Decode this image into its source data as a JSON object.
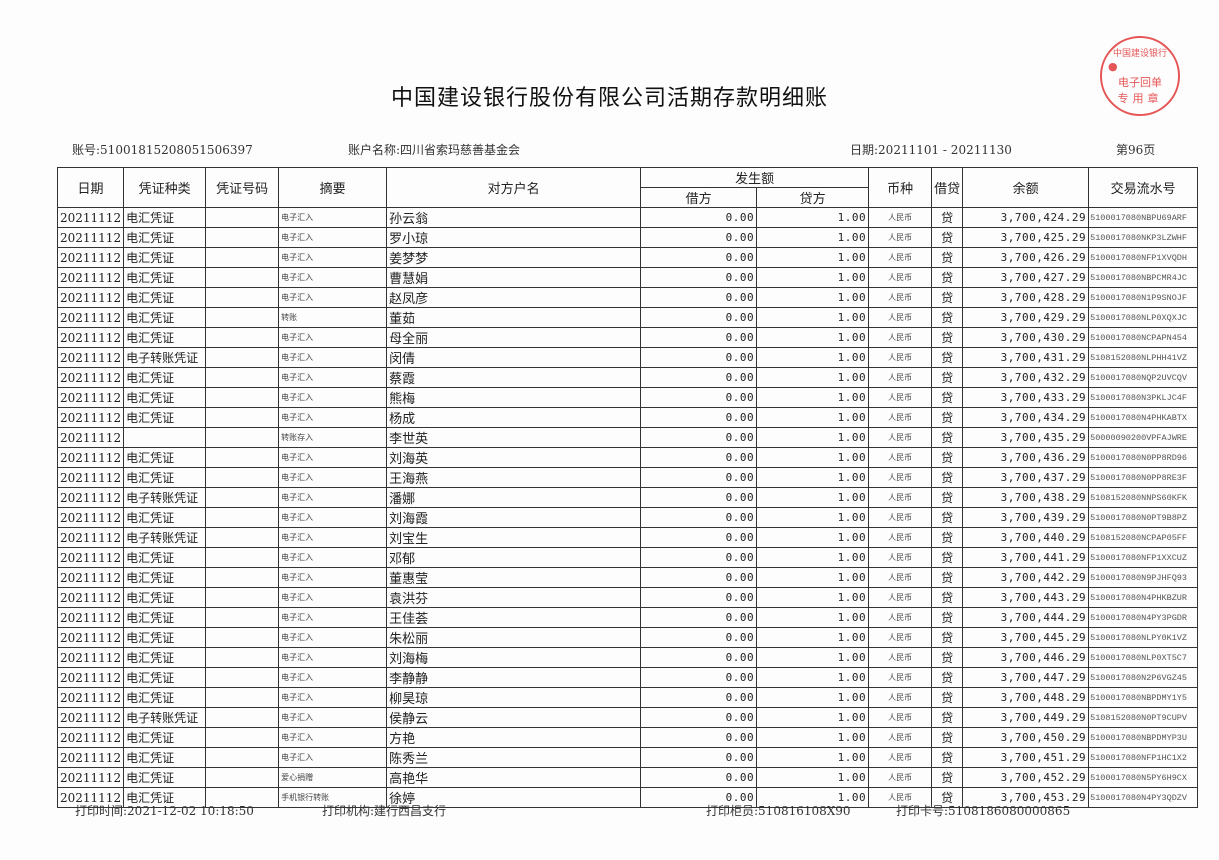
{
  "title": "中国建设银行股份有限公司活期存款明细账",
  "meta": {
    "account": "账号:51001815208051506397",
    "account_name": "账户名称:四川省索玛慈善基金会",
    "date": "日期:20211101 - 20211130",
    "page": "第96页"
  },
  "headers": {
    "date": "日期",
    "voucher_type": "凭证种类",
    "voucher_no": "凭证号码",
    "summary": "摘要",
    "counterparty": "对方户名",
    "amount": "发生额",
    "debit": "借方",
    "credit": "贷方",
    "currency": "币种",
    "dc": "借贷",
    "balance": "余额",
    "serial": "交易流水号"
  },
  "rows": [
    [
      "20211112",
      "电汇凭证",
      "",
      "电子汇入",
      "孙云翁",
      "0.00",
      "1.00",
      "人民币",
      "贷",
      "3,700,424.29",
      "5100017080NBPU69ARF"
    ],
    [
      "20211112",
      "电汇凭证",
      "",
      "电子汇入",
      "罗小琼",
      "0.00",
      "1.00",
      "人民币",
      "贷",
      "3,700,425.29",
      "5100017080NKP3LZWHF"
    ],
    [
      "20211112",
      "电汇凭证",
      "",
      "电子汇入",
      "姜梦梦",
      "0.00",
      "1.00",
      "人民币",
      "贷",
      "3,700,426.29",
      "5100017080NFP1XVQDH"
    ],
    [
      "20211112",
      "电汇凭证",
      "",
      "电子汇入",
      "曹慧娟",
      "0.00",
      "1.00",
      "人民币",
      "贷",
      "3,700,427.29",
      "5100017080NBPCMR4JC"
    ],
    [
      "20211112",
      "电汇凭证",
      "",
      "电子汇入",
      "赵凤彦",
      "0.00",
      "1.00",
      "人民币",
      "贷",
      "3,700,428.29",
      "5100017080N1P9SNOJF"
    ],
    [
      "20211112",
      "电汇凭证",
      "",
      "转账",
      "董茹",
      "0.00",
      "1.00",
      "人民币",
      "贷",
      "3,700,429.29",
      "5100017080NLP0XQXJC"
    ],
    [
      "20211112",
      "电汇凭证",
      "",
      "电子汇入",
      "母全丽",
      "0.00",
      "1.00",
      "人民币",
      "贷",
      "3,700,430.29",
      "5100017080NCPAPN454"
    ],
    [
      "20211112",
      "电子转账凭证",
      "",
      "电子汇入",
      "闵倩",
      "0.00",
      "1.00",
      "人民币",
      "贷",
      "3,700,431.29",
      "5108152080NLPHH41VZ"
    ],
    [
      "20211112",
      "电汇凭证",
      "",
      "电子汇入",
      "蔡霞",
      "0.00",
      "1.00",
      "人民币",
      "贷",
      "3,700,432.29",
      "5100017080NQP2UVCQV"
    ],
    [
      "20211112",
      "电汇凭证",
      "",
      "电子汇入",
      "熊梅",
      "0.00",
      "1.00",
      "人民币",
      "贷",
      "3,700,433.29",
      "5100017080N3PKLJC4F"
    ],
    [
      "20211112",
      "电汇凭证",
      "",
      "电子汇入",
      "杨成",
      "0.00",
      "1.00",
      "人民币",
      "贷",
      "3,700,434.29",
      "5100017080N4PHKABTX"
    ],
    [
      "20211112",
      "",
      "",
      "转账存入",
      "李世英",
      "0.00",
      "1.00",
      "人民币",
      "贷",
      "3,700,435.29",
      "50000090200VPFAJWRE"
    ],
    [
      "20211112",
      "电汇凭证",
      "",
      "电子汇入",
      "刘海英",
      "0.00",
      "1.00",
      "人民币",
      "贷",
      "3,700,436.29",
      "5100017080N0PP8RD96"
    ],
    [
      "20211112",
      "电汇凭证",
      "",
      "电子汇入",
      "王海燕",
      "0.00",
      "1.00",
      "人民币",
      "贷",
      "3,700,437.29",
      "5100017080N0PP8RE3F"
    ],
    [
      "20211112",
      "电子转账凭证",
      "",
      "电子汇入",
      "潘娜",
      "0.00",
      "1.00",
      "人民币",
      "贷",
      "3,700,438.29",
      "5108152080NNPS60KFK"
    ],
    [
      "20211112",
      "电汇凭证",
      "",
      "电子汇入",
      "刘海霞",
      "0.00",
      "1.00",
      "人民币",
      "贷",
      "3,700,439.29",
      "5100017080N0PT9B8PZ"
    ],
    [
      "20211112",
      "电子转账凭证",
      "",
      "电子汇入",
      "刘宝生",
      "0.00",
      "1.00",
      "人民币",
      "贷",
      "3,700,440.29",
      "5108152080NCPAP05FF"
    ],
    [
      "20211112",
      "电汇凭证",
      "",
      "电子汇入",
      "邓郁",
      "0.00",
      "1.00",
      "人民币",
      "贷",
      "3,700,441.29",
      "5100017080NFP1XXCUZ"
    ],
    [
      "20211112",
      "电汇凭证",
      "",
      "电子汇入",
      "董惠莹",
      "0.00",
      "1.00",
      "人民币",
      "贷",
      "3,700,442.29",
      "5100017080N9PJHFQ93"
    ],
    [
      "20211112",
      "电汇凭证",
      "",
      "电子汇入",
      "袁洪芬",
      "0.00",
      "1.00",
      "人民币",
      "贷",
      "3,700,443.29",
      "5100017080N4PHKBZUR"
    ],
    [
      "20211112",
      "电汇凭证",
      "",
      "电子汇入",
      "王佳荟",
      "0.00",
      "1.00",
      "人民币",
      "贷",
      "3,700,444.29",
      "5100017080N4PY3PGDR"
    ],
    [
      "20211112",
      "电汇凭证",
      "",
      "电子汇入",
      "朱松丽",
      "0.00",
      "1.00",
      "人民币",
      "贷",
      "3,700,445.29",
      "5100017080NLPY0K1VZ"
    ],
    [
      "20211112",
      "电汇凭证",
      "",
      "电子汇入",
      "刘海梅",
      "0.00",
      "1.00",
      "人民币",
      "贷",
      "3,700,446.29",
      "5100017080NLP0XT5C7"
    ],
    [
      "20211112",
      "电汇凭证",
      "",
      "电子汇入",
      "李静静",
      "0.00",
      "1.00",
      "人民币",
      "贷",
      "3,700,447.29",
      "5100017080N2P6VGZ45"
    ],
    [
      "20211112",
      "电汇凭证",
      "",
      "电子汇入",
      "柳昊琼",
      "0.00",
      "1.00",
      "人民币",
      "贷",
      "3,700,448.29",
      "5100017080NBPDMY1Y5"
    ],
    [
      "20211112",
      "电子转账凭证",
      "",
      "电子汇入",
      "侯静云",
      "0.00",
      "1.00",
      "人民币",
      "贷",
      "3,700,449.29",
      "5108152080N0PT9CUPV"
    ],
    [
      "20211112",
      "电汇凭证",
      "",
      "电子汇入",
      "方艳",
      "0.00",
      "1.00",
      "人民币",
      "贷",
      "3,700,450.29",
      "5100017080NBPDMYP3U"
    ],
    [
      "20211112",
      "电汇凭证",
      "",
      "电子汇入",
      "陈秀兰",
      "0.00",
      "1.00",
      "人民币",
      "贷",
      "3,700,451.29",
      "5100017080NFP1HC1X2"
    ],
    [
      "20211112",
      "电汇凭证",
      "",
      "爱心捐赠",
      "高艳华",
      "0.00",
      "1.00",
      "人民币",
      "贷",
      "3,700,452.29",
      "5100017080N5PY6H9CX"
    ],
    [
      "20211112",
      "电汇凭证",
      "",
      "手机银行转账",
      "徐婷",
      "0.00",
      "1.00",
      "人民币",
      "贷",
      "3,700,453.29",
      "5100017080N4PY3QDZV"
    ]
  ],
  "footer": {
    "print_time": "打印时间:2021-12-02 10:18:50",
    "print_org": "打印机构:建行西昌支行",
    "print_counter": "打印柜员:510816108X90",
    "print_card": "打印卡号:5108186080000865"
  },
  "stamp": {
    "line1": "中国建设银行",
    "line2": "电子回单",
    "line3": "专用章",
    "color": "#e23a3a"
  }
}
